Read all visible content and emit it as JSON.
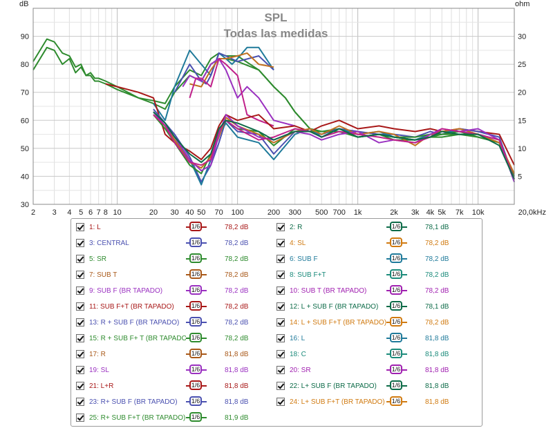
{
  "chart_data": {
    "type": "line",
    "title": "SPL",
    "subtitle": "Todas las medidas",
    "ylabel": "dB",
    "y2label": "ohm",
    "x_unit_label": "Hz",
    "x_scale": "log",
    "xlim": [
      2,
      20000
    ],
    "ylim": [
      30,
      100
    ],
    "y2lim": [
      0,
      35
    ],
    "grid": true,
    "x_ticks": [
      {
        "v": 2,
        "label": "2"
      },
      {
        "v": 3,
        "label": "3"
      },
      {
        "v": 4,
        "label": "4"
      },
      {
        "v": 5,
        "label": "5"
      },
      {
        "v": 6,
        "label": "6"
      },
      {
        "v": 7,
        "label": "7"
      },
      {
        "v": 8,
        "label": "8"
      },
      {
        "v": 10,
        "label": "10"
      },
      {
        "v": 20,
        "label": "20"
      },
      {
        "v": 30,
        "label": "30"
      },
      {
        "v": 40,
        "label": "40"
      },
      {
        "v": 50,
        "label": "50"
      },
      {
        "v": 70,
        "label": "70"
      },
      {
        "v": 100,
        "label": "100"
      },
      {
        "v": 200,
        "label": "200"
      },
      {
        "v": 300,
        "label": "300"
      },
      {
        "v": 500,
        "label": "500"
      },
      {
        "v": 700,
        "label": "700"
      },
      {
        "v": 1000,
        "label": "1k"
      },
      {
        "v": 2000,
        "label": "2k"
      },
      {
        "v": 3000,
        "label": "3k"
      },
      {
        "v": 4000,
        "label": "4k"
      },
      {
        "v": 5000,
        "label": "5k"
      },
      {
        "v": 7000,
        "label": "7k"
      },
      {
        "v": 10000,
        "label": "10k"
      },
      {
        "v": 20000,
        "label": "20,0kHz"
      }
    ],
    "y_ticks": [
      30,
      40,
      50,
      60,
      70,
      80,
      90
    ],
    "y2_ticks": [
      5,
      10,
      15,
      20,
      25,
      30
    ],
    "series": [
      {
        "color": "#2e8b2e",
        "x": [
          2,
          2.6,
          3,
          3.5,
          4,
          4.5,
          5,
          5.5,
          6,
          6.5,
          7,
          8,
          10,
          15,
          20,
          25,
          30,
          40,
          50,
          60,
          70,
          80,
          100,
          150,
          200,
          250,
          300,
          400,
          500,
          700,
          1000,
          1500,
          2000,
          3000,
          4000,
          5000,
          7000,
          10000,
          15000,
          20000
        ],
        "y": [
          81,
          89,
          88,
          84,
          83,
          79,
          80,
          76,
          77,
          75,
          75,
          74,
          72,
          68,
          67,
          66,
          72,
          78,
          76,
          82,
          84,
          83,
          83,
          78,
          72,
          68,
          63,
          57,
          56,
          57,
          54,
          55,
          53,
          53,
          54,
          54,
          55,
          55,
          52,
          39
        ]
      },
      {
        "color": "#2e8b2e",
        "x": [
          2,
          2.6,
          3,
          3.5,
          4,
          4.5,
          5,
          5.5,
          6,
          6.5,
          7,
          8,
          10,
          15,
          20,
          25,
          30,
          40,
          50,
          60,
          70,
          80,
          100,
          150,
          200,
          250,
          300,
          400,
          500,
          700,
          1000,
          1500,
          2000,
          3000,
          4000,
          5000,
          7000,
          10000,
          15000,
          20000
        ],
        "y": [
          78,
          86,
          85,
          80,
          82,
          77,
          79,
          76,
          76,
          74,
          74,
          73,
          71,
          68,
          66,
          64,
          70,
          76,
          74,
          80,
          82,
          82,
          81,
          78,
          72,
          68,
          63,
          57,
          56,
          56,
          54,
          55,
          54,
          53,
          54,
          55,
          55,
          54,
          52,
          39
        ]
      },
      {
        "color": "#1f7a9a",
        "x": [
          20,
          25,
          30,
          40,
          50,
          60,
          70,
          80,
          90,
          100,
          120,
          150,
          200
        ],
        "y": [
          66,
          60,
          72,
          85,
          80,
          76,
          84,
          82,
          80,
          82,
          86,
          86,
          78
        ]
      },
      {
        "color": "#4a50b0",
        "x": [
          30,
          40,
          50,
          55,
          60,
          70,
          80,
          100,
          150,
          200
        ],
        "y": [
          70,
          80,
          74,
          73,
          76,
          84,
          83,
          81,
          83,
          78
        ]
      },
      {
        "color": "#c07020",
        "x": [
          40,
          50,
          60,
          70,
          80,
          100,
          120,
          150,
          200
        ],
        "y": [
          73,
          72,
          78,
          82,
          82,
          83,
          84,
          80,
          79
        ]
      },
      {
        "color": "#9a30c0",
        "x": [
          35,
          40,
          50,
          60,
          70,
          80,
          100,
          120,
          150,
          200,
          300
        ],
        "y": [
          72,
          76,
          74,
          80,
          82,
          78,
          68,
          72,
          68,
          60,
          58
        ]
      },
      {
        "color": "#c0208a",
        "x": [
          40,
          45,
          50,
          60,
          70,
          80,
          100,
          120,
          150,
          200
        ],
        "y": [
          68,
          75,
          75,
          72,
          82,
          80,
          76,
          62,
          60,
          58
        ]
      },
      {
        "color": "#a81818",
        "x": [
          8,
          10,
          15,
          20,
          25,
          30,
          40,
          50,
          60,
          70,
          80,
          100,
          150,
          200,
          300,
          400,
          500,
          700,
          1000,
          1500,
          2000,
          3000,
          4000,
          5000,
          7000,
          10000,
          15000,
          20000
        ],
        "y": [
          73,
          72,
          70,
          68,
          55,
          52,
          49,
          46,
          50,
          58,
          62,
          60,
          62,
          57,
          58,
          56,
          58,
          60,
          57,
          58,
          57,
          56,
          57,
          56,
          57,
          56,
          55,
          44
        ]
      },
      {
        "color": "#4a50b0",
        "x": [
          20,
          25,
          30,
          40,
          50,
          60,
          70,
          80,
          100,
          150,
          200,
          300,
          400,
          500,
          700,
          1000,
          1500,
          2000,
          3000,
          4000,
          5000,
          7000,
          10000,
          15000,
          20000
        ],
        "y": [
          64,
          59,
          55,
          47,
          38,
          44,
          52,
          60,
          56,
          55,
          48,
          56,
          56,
          55,
          57,
          56,
          55,
          55,
          54,
          56,
          55,
          57,
          56,
          54,
          39
        ]
      },
      {
        "color": "#1f7a9a",
        "x": [
          20,
          25,
          30,
          40,
          50,
          60,
          70,
          80,
          100,
          150,
          200,
          300,
          400,
          500,
          700,
          1000,
          1500,
          2000,
          3000,
          4000,
          5000,
          7000,
          10000,
          15000,
          20000
        ],
        "y": [
          63,
          58,
          53,
          46,
          37,
          46,
          55,
          59,
          54,
          52,
          46,
          55,
          57,
          54,
          57,
          55,
          56,
          54,
          53,
          55,
          56,
          56,
          55,
          53,
          38
        ]
      },
      {
        "color": "#2e8b2e",
        "x": [
          20,
          25,
          30,
          40,
          50,
          60,
          70,
          80,
          100,
          150,
          200,
          300,
          400,
          500,
          700,
          1000,
          1500,
          2000,
          3000,
          4000,
          5000,
          7000,
          10000,
          15000,
          20000
        ],
        "y": [
          62,
          57,
          52,
          44,
          41,
          48,
          55,
          60,
          57,
          56,
          51,
          57,
          56,
          56,
          56,
          54,
          55,
          54,
          54,
          55,
          55,
          56,
          54,
          52,
          40
        ]
      },
      {
        "color": "#c07020",
        "x": [
          20,
          25,
          30,
          40,
          50,
          60,
          70,
          80,
          100,
          150,
          200,
          300,
          400,
          500,
          700,
          1000,
          1500,
          2000,
          3000,
          4000,
          5000,
          7000,
          10000,
          15000,
          20000
        ],
        "y": [
          62,
          58,
          53,
          45,
          43,
          47,
          54,
          61,
          58,
          55,
          52,
          56,
          57,
          55,
          58,
          55,
          56,
          55,
          51,
          55,
          56,
          57,
          55,
          52,
          41
        ]
      },
      {
        "color": "#9a30c0",
        "x": [
          20,
          25,
          30,
          40,
          50,
          60,
          70,
          80,
          100,
          150,
          200,
          300,
          400,
          500,
          700,
          1000,
          1500,
          2000,
          3000,
          4000,
          5000,
          7000,
          10000,
          15000,
          20000
        ],
        "y": [
          63,
          58,
          54,
          46,
          42,
          44,
          55,
          62,
          58,
          54,
          53,
          56,
          55,
          53,
          55,
          56,
          52,
          53,
          52,
          55,
          57,
          56,
          57,
          53,
          38
        ]
      },
      {
        "color": "#c0208a",
        "x": [
          20,
          25,
          30,
          40,
          50,
          60,
          70,
          80,
          100,
          150,
          200,
          300,
          400,
          500,
          700,
          1000,
          1500,
          2000,
          3000,
          4000,
          5000,
          7000,
          10000,
          15000,
          20000
        ],
        "y": [
          62,
          58,
          52,
          45,
          44,
          46,
          56,
          60,
          57,
          53,
          54,
          57,
          56,
          54,
          56,
          55,
          54,
          53,
          52,
          54,
          57,
          56,
          55,
          53,
          39
        ]
      },
      {
        "color": "#0d6b48",
        "x": [
          20,
          25,
          30,
          40,
          50,
          60,
          70,
          80,
          100,
          150,
          200,
          300,
          400,
          500,
          700,
          1000,
          1500,
          2000,
          3000,
          4000,
          5000,
          7000,
          10000,
          15000,
          20000
        ],
        "y": [
          63,
          59,
          54,
          48,
          45,
          48,
          57,
          60,
          59,
          56,
          53,
          56,
          56,
          54,
          57,
          54,
          55,
          54,
          53,
          54,
          56,
          55,
          55,
          51,
          39
        ]
      }
    ]
  },
  "legend": {
    "smoothing_label": "1/6",
    "items": [
      {
        "name": "1: L",
        "value": "78,2 dB",
        "color": "#a81818"
      },
      {
        "name": "2: R",
        "value": "78,1 dB",
        "color": "#0d6b48"
      },
      {
        "name": "3: CENTRAL",
        "value": "78,2 dB",
        "color": "#4a50b0"
      },
      {
        "name": "4: SL",
        "value": "78,2 dB",
        "color": "#d07a10"
      },
      {
        "name": "5: SR",
        "value": "78,2 dB",
        "color": "#2e8b2e"
      },
      {
        "name": "6: SUB F",
        "value": "78,2 dB",
        "color": "#1f7a9a"
      },
      {
        "name": "7: SUB T",
        "value": "78,2 dB",
        "color": "#a85818"
      },
      {
        "name": "8: SUB F+T",
        "value": "78,2 dB",
        "color": "#1a8a7a"
      },
      {
        "name": "9: SUB F (BR TAPADO)",
        "value": "78,2 dB",
        "color": "#9a30c0"
      },
      {
        "name": "10: SUB T (BR TAPADO)",
        "value": "78,2 dB",
        "color": "#a020b0"
      },
      {
        "name": "11: SUB F+T (BR TAPADO)",
        "value": "78,2 dB",
        "color": "#a81818"
      },
      {
        "name": "12: L + SUB F (BR TAPADO)",
        "value": "78,1 dB",
        "color": "#0d6b48"
      },
      {
        "name": "13: R + SUB F (BR TAPADO)",
        "value": "78,2 dB",
        "color": "#4a50b0"
      },
      {
        "name": "14: L + SUB F+T (BR TAPADO)",
        "value": "78,2 dB",
        "color": "#d07a10"
      },
      {
        "name": "15: R + SUB F+ T (BR TAPADO)",
        "value": "78,2 dB",
        "color": "#2e8b2e"
      },
      {
        "name": "16: L",
        "value": "81,8 dB",
        "color": "#1f7a9a"
      },
      {
        "name": "17: R",
        "value": "81,8 dB",
        "color": "#a85818"
      },
      {
        "name": "18: C",
        "value": "81,8 dB",
        "color": "#1a8a7a"
      },
      {
        "name": "19: SL",
        "value": "81,8 dB",
        "color": "#9a30c0"
      },
      {
        "name": "20: SR",
        "value": "81,8 dB",
        "color": "#a020b0"
      },
      {
        "name": "21: L+R",
        "value": "81,8 dB",
        "color": "#a81818"
      },
      {
        "name": "22: L+ SUB F (BR TAPADO)",
        "value": "81,8 dB",
        "color": "#0d6b48"
      },
      {
        "name": "23: R+ SUB F (BR TAPADO)",
        "value": "81,8 dB",
        "color": "#4a50b0"
      },
      {
        "name": "24: L+ SUB F+T (BR TAPADO)",
        "value": "81,8 dB",
        "color": "#d07a10"
      },
      {
        "name": "25: R+ SUB F+T (BR TAPADO)",
        "value": "81,9 dB",
        "color": "#2e8b2e"
      }
    ]
  }
}
